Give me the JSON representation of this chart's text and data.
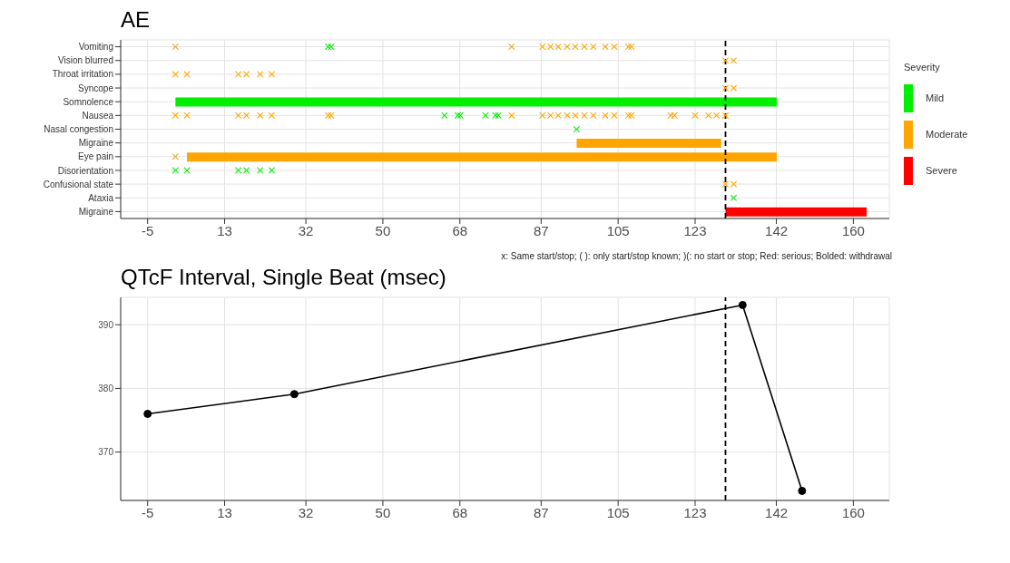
{
  "chart_data": [
    {
      "type": "bar",
      "orientation": "horizontal",
      "title": "AE",
      "categories": [
        "Vomiting",
        "Vision blurred",
        "Throat irritation",
        "Syncope",
        "Somnolence",
        "Nausea",
        "Nasal congestion",
        "Migraine",
        "Eye pain",
        "Disorientation",
        "Confusional state",
        "Ataxia",
        "Migraine"
      ],
      "legend_title": "Severity",
      "legend": "right",
      "grid": true,
      "xlim": [
        -11.3,
        168.4
      ],
      "xticks": [
        -5,
        13,
        32,
        50,
        68,
        87,
        105,
        123,
        142,
        160
      ],
      "series": [
        {
          "name": "Mild",
          "color": "#00ee00",
          "values": [
            null,
            null,
            null,
            null,
            140.6,
            null,
            null,
            null,
            null,
            null,
            null,
            null,
            null
          ],
          "base": [
            null,
            null,
            null,
            null,
            1.5,
            null,
            null,
            null,
            null,
            null,
            null,
            null,
            null
          ]
        },
        {
          "name": "Moderate",
          "color": "#ffa500",
          "values": [
            null,
            null,
            null,
            null,
            null,
            null,
            null,
            33.8,
            137.9,
            null,
            null,
            null,
            null
          ],
          "base": [
            null,
            null,
            null,
            null,
            null,
            null,
            null,
            95.3,
            4.2,
            null,
            null,
            null,
            null
          ]
        },
        {
          "name": "Severe",
          "color": "#ff0000",
          "values": [
            null,
            null,
            null,
            null,
            null,
            null,
            null,
            null,
            null,
            null,
            null,
            null,
            33.0
          ],
          "base": [
            null,
            null,
            null,
            null,
            null,
            null,
            null,
            null,
            null,
            null,
            null,
            null,
            130.1
          ]
        },
        {
          "type": "scatter",
          "marker": "cross",
          "color": "#ffa500",
          "x": [
            "Vomiting",
            "Vomiting",
            "Vomiting",
            "Vomiting",
            "Vomiting",
            "Vomiting",
            "Vomiting",
            "Vomiting",
            "Vomiting",
            "Vomiting",
            "Vomiting",
            "Vomiting",
            "Vomiting",
            "Vision blurred",
            "Vision blurred",
            "Throat irritation",
            "Throat irritation",
            "Throat irritation",
            "Throat irritation",
            "Throat irritation",
            "Throat irritation",
            "Syncope",
            "Syncope",
            "Nausea",
            "Nausea",
            "Nausea",
            "Nausea",
            "Nausea",
            "Nausea",
            "Nausea",
            "Nausea",
            "Nausea",
            "Nausea",
            "Nausea",
            "Nausea",
            "Nausea",
            "Nausea",
            "Nausea",
            "Nausea",
            "Nausea",
            "Nausea",
            "Nausea",
            "Nausea",
            "Nausea",
            "Nausea",
            "Nausea",
            "Nausea",
            "Nausea",
            "Nausea",
            "Eye pain",
            "Confusional state",
            "Confusional state"
          ],
          "values": [
            1.5,
            80.1,
            87.3,
            89.2,
            91.0,
            93.1,
            95.0,
            97.1,
            99.2,
            102.0,
            104.1,
            107.4,
            108.1,
            130.1,
            132.0,
            1.5,
            4.2,
            16.2,
            18.1,
            21.3,
            24.0,
            130.1,
            132.0,
            1.5,
            4.2,
            16.2,
            18.1,
            21.3,
            24.0,
            37.2,
            37.9,
            80.1,
            87.3,
            89.2,
            91.0,
            93.1,
            95.0,
            97.1,
            99.2,
            102.0,
            104.1,
            107.4,
            108.1,
            117.3,
            118.2,
            123.0,
            126.1,
            128.0,
            130.1,
            1.5,
            130.1,
            132.0
          ]
        },
        {
          "type": "scatter",
          "marker": "cross",
          "color": "#00ee00",
          "x": [
            "Vomiting",
            "Vomiting",
            "Nausea",
            "Nausea",
            "Nausea",
            "Nausea",
            "Nausea",
            "Nausea",
            "Nasal congestion",
            "Disorientation",
            "Disorientation",
            "Disorientation",
            "Disorientation",
            "Disorientation",
            "Disorientation",
            "Ataxia"
          ],
          "values": [
            37.2,
            37.9,
            64.4,
            67.5,
            68.1,
            74.0,
            76.3,
            77.0,
            95.3,
            1.5,
            4.2,
            16.2,
            18.1,
            21.3,
            24.0,
            132.0
          ]
        }
      ],
      "ref_lines": [
        {
          "axis": "x",
          "value": 130.1,
          "color": "#000000",
          "line_style": "dashed"
        }
      ],
      "annotations": [
        "x: Same start/stop; ( ): only start/stop known; )(: no start or stop; Red: serious; Bolded: withdrawal"
      ]
    },
    {
      "type": "line",
      "title": "QTcF Interval, Single Beat (msec)",
      "x": [
        -5,
        29.3,
        134.1,
        148.0
      ],
      "grid": true,
      "marker": "circle",
      "line_style": "solid",
      "xlim": [
        -11.3,
        168.4
      ],
      "xticks": [
        -5,
        13,
        32,
        50,
        68,
        87,
        105,
        123,
        142,
        160
      ],
      "ylim": [
        362.4,
        394.3
      ],
      "yticks": [
        370,
        380,
        390
      ],
      "series": [
        {
          "color": "#000000",
          "values": [
            376.0,
            379.1,
            393.1,
            363.9
          ]
        }
      ],
      "ref_lines": [
        {
          "axis": "x",
          "value": 130.1,
          "color": "#000000",
          "line_style": "dashed"
        }
      ]
    }
  ]
}
